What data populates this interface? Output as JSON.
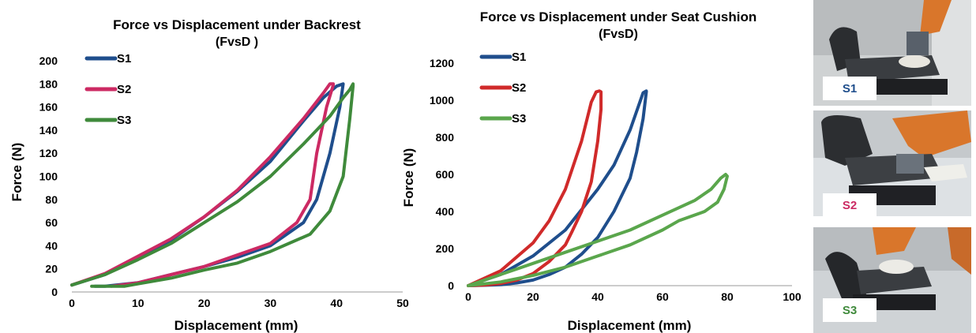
{
  "chart_data": [
    {
      "type": "line",
      "title": "Force vs  Displacement under Backrest",
      "subtitle": "(FvsD )",
      "xlabel": "Displacement (mm)",
      "ylabel": "Force (N)",
      "xlim": [
        0,
        50
      ],
      "ylim": [
        0,
        200
      ],
      "xticks": [
        "0",
        "10",
        "20",
        "30",
        "40",
        "50"
      ],
      "yticks": [
        "0",
        "20",
        "40",
        "60",
        "80",
        "100",
        "120",
        "140",
        "160",
        "180",
        "200"
      ],
      "legend_position": "top-left",
      "grid": false,
      "series": [
        {
          "name": "S1",
          "color": "#1f4e8c",
          "x": [
            0,
            5,
            10,
            15,
            20,
            25,
            30,
            35,
            38,
            40,
            41,
            41,
            40.5,
            39,
            37,
            35,
            30,
            25,
            20,
            15,
            10,
            5,
            3.5
          ],
          "y": [
            6,
            15,
            30,
            45,
            65,
            87,
            113,
            148,
            168,
            178,
            180,
            180,
            160,
            120,
            80,
            60,
            40,
            30,
            22,
            15,
            8,
            5,
            5
          ]
        },
        {
          "name": "S2",
          "color": "#cc2a63",
          "x": [
            0,
            5,
            10,
            15,
            20,
            25,
            30,
            35,
            38,
            39,
            39.5,
            39.5,
            38.5,
            37,
            36,
            34,
            30,
            25,
            20,
            15,
            10,
            6
          ],
          "y": [
            6,
            16,
            31,
            46,
            65,
            88,
            117,
            150,
            172,
            180,
            180,
            179,
            160,
            120,
            80,
            60,
            42,
            32,
            22,
            15,
            8,
            5
          ]
        },
        {
          "name": "S3",
          "color": "#3f8a3b",
          "x": [
            0,
            5,
            10,
            15,
            20,
            25,
            30,
            35,
            39,
            41,
            42,
            42.5,
            42.5,
            42,
            41,
            39,
            36,
            30,
            25,
            20,
            15,
            10,
            8,
            3
          ],
          "y": [
            6,
            15,
            28,
            42,
            60,
            78,
            100,
            128,
            152,
            168,
            175,
            180,
            178,
            150,
            100,
            70,
            50,
            35,
            25,
            19,
            12,
            7,
            5,
            5
          ]
        }
      ]
    },
    {
      "type": "line",
      "title": "Force vs Displacement under Seat Cushion",
      "subtitle": "(FvsD)",
      "xlabel": "Displacement (mm)",
      "ylabel": "Force (N)",
      "xlim": [
        0,
        100
      ],
      "ylim": [
        0,
        1200
      ],
      "xticks": [
        "0",
        "20",
        "40",
        "60",
        "80",
        "100"
      ],
      "yticks": [
        "0",
        "200",
        "400",
        "600",
        "800",
        "1000",
        "1200"
      ],
      "legend_position": "top-left",
      "grid": false,
      "series": [
        {
          "name": "S1",
          "color": "#1f4e8c",
          "x": [
            0,
            10,
            20,
            30,
            40,
            45,
            50,
            53,
            54,
            55,
            55,
            54,
            52,
            50,
            45,
            40,
            35,
            30,
            25,
            20,
            15,
            10,
            5,
            0
          ],
          "y": [
            0,
            60,
            160,
            300,
            520,
            650,
            840,
            990,
            1040,
            1050,
            1045,
            900,
            720,
            580,
            400,
            260,
            170,
            100,
            60,
            30,
            15,
            5,
            2,
            0
          ]
        },
        {
          "name": "S2",
          "color": "#d02a2a",
          "x": [
            0,
            10,
            20,
            25,
            30,
            35,
            38,
            39.5,
            40.5,
            41,
            41,
            40,
            38,
            35,
            32,
            30,
            25,
            20,
            15,
            10,
            5,
            0
          ],
          "y": [
            0,
            80,
            230,
            350,
            520,
            780,
            990,
            1045,
            1050,
            1045,
            950,
            780,
            560,
            400,
            290,
            220,
            130,
            65,
            30,
            12,
            3,
            0
          ]
        },
        {
          "name": "S3",
          "color": "#5aa64c",
          "x": [
            0,
            10,
            20,
            30,
            40,
            50,
            60,
            65,
            70,
            75,
            78,
            79.5,
            80,
            79,
            77,
            73,
            65,
            60,
            50,
            40,
            30,
            20,
            10,
            0
          ],
          "y": [
            0,
            60,
            120,
            180,
            240,
            300,
            380,
            420,
            460,
            520,
            580,
            600,
            590,
            520,
            450,
            400,
            350,
            300,
            220,
            160,
            100,
            55,
            20,
            0
          ]
        }
      ]
    }
  ],
  "photos": [
    {
      "label": "S1",
      "label_color": "#1f4e8c"
    },
    {
      "label": "S2",
      "label_color": "#cc2a63"
    },
    {
      "label": "S3",
      "label_color": "#3f8a3b"
    }
  ]
}
